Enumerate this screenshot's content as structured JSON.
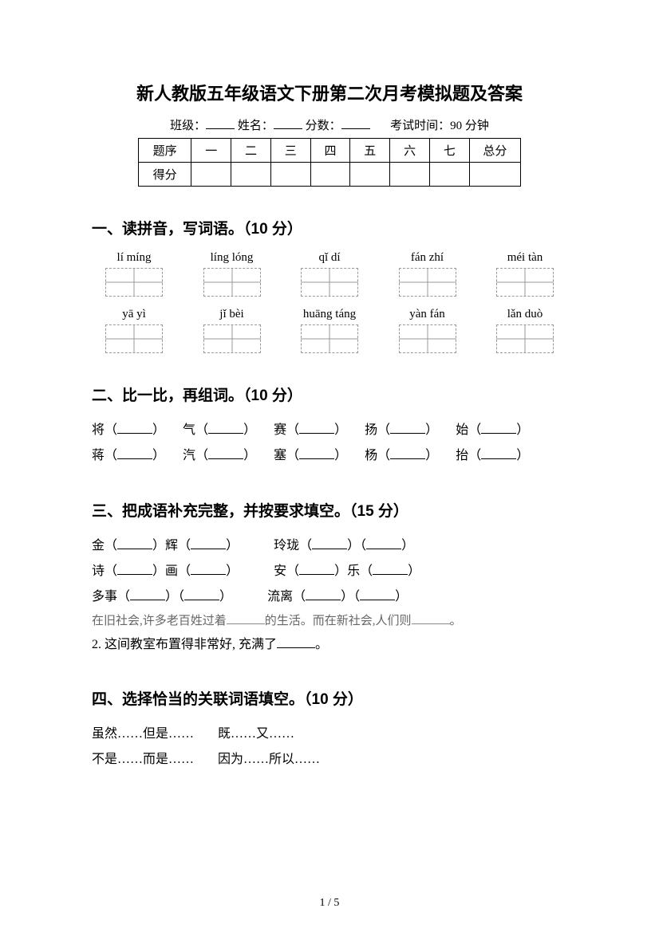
{
  "title": "新人教版五年级语文下册第二次月考模拟题及答案",
  "info": {
    "class_label": "班级：",
    "name_label": "姓名：",
    "score_label": "分数：",
    "time_label": "考试时间：90 分钟"
  },
  "score_table": {
    "row1_label": "题序",
    "cols": [
      "一",
      "二",
      "三",
      "四",
      "五",
      "六",
      "七"
    ],
    "total_label": "总分",
    "row2_label": "得分"
  },
  "section1": {
    "heading": "一、读拼音，写词语。（10 分）",
    "row1": [
      "lí míng",
      "líng lóng",
      "qǐ dí",
      "fán zhí",
      "méi tàn"
    ],
    "row2": [
      "yā  yì",
      "jǐ bèi",
      "huāng táng",
      "yàn fán",
      "lǎn duò"
    ]
  },
  "section2": {
    "heading": "二、比一比，再组词。（10 分）",
    "pairs_top": [
      "将",
      "气",
      "赛",
      "扬",
      "始"
    ],
    "pairs_bottom": [
      "蒋",
      "汽",
      "塞",
      "杨",
      "抬"
    ]
  },
  "section3": {
    "heading": "三、把成语补充完整，并按要求填空。（15 分）",
    "idiom1a_pre": "金",
    "idiom1a_mid": "辉",
    "idiom1b_pre": "玲珑",
    "idiom2a_pre": "诗",
    "idiom2a_mid": "画",
    "idiom2b_pre": "安",
    "idiom2b_mid": "乐",
    "idiom3a_pre": "多事",
    "idiom3b_pre": "流离",
    "sent1_a": "在旧社会,许多老百姓过着",
    "sent1_b": "的生活。而在新社会,人们则",
    "sent1_c": "。",
    "sent2": "2. 这间教室布置得非常好, 充满了",
    "sent2_end": "。"
  },
  "section4": {
    "heading": "四、选择恰当的关联词语填空。（10 分）",
    "c1": "虽然……但是……",
    "c2": "既……又……",
    "c3": "不是……而是……",
    "c4": "因为……所以……"
  },
  "pagenum": "1 / 5"
}
